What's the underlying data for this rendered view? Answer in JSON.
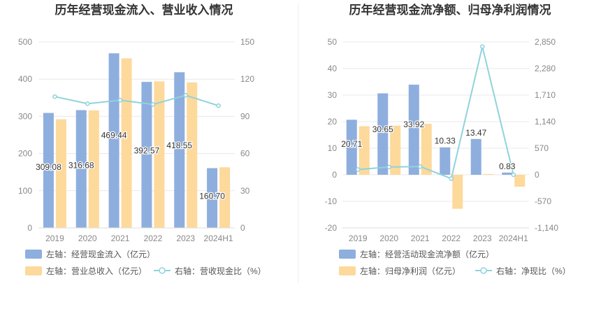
{
  "chart_data": [
    {
      "type": "bar",
      "title": "历年经营现金流入、营业收入情况",
      "categories": [
        "2019",
        "2020",
        "2021",
        "2022",
        "2023",
        "2024H1"
      ],
      "y_left": {
        "ticks": [
          "0",
          "100",
          "200",
          "300",
          "400",
          "500"
        ],
        "ylim": [
          0,
          500
        ]
      },
      "y_right": {
        "ticks": [
          "0",
          "30",
          "60",
          "90",
          "120",
          "150"
        ],
        "ylim": [
          0,
          150
        ]
      },
      "grid": true,
      "legend_position": "bottom-left",
      "series": [
        {
          "name": "左轴：经营现金流入（亿元）",
          "kind": "bar",
          "axis": "left",
          "color": "#8eaede",
          "values": [
            309.08,
            316.68,
            469.44,
            392.57,
            418.55,
            160.7
          ],
          "labels": [
            "309.08",
            "316.68",
            "469.44",
            "392.57",
            "418.55",
            "160.70"
          ]
        },
        {
          "name": "左轴：营业总收入（亿元）",
          "kind": "bar",
          "axis": "left",
          "color": "#fdd99b",
          "values": [
            292,
            316,
            456,
            394,
            391,
            163
          ]
        },
        {
          "name": "右轴：营收现金比（%）",
          "kind": "line",
          "axis": "right",
          "color": "#8fd3dc",
          "values": [
            105.9,
            100.2,
            103.0,
            99.6,
            107.0,
            98.6
          ]
        }
      ]
    },
    {
      "type": "bar",
      "title": "历年经营现金流净额、归母净利润情况",
      "categories": [
        "2019",
        "2020",
        "2021",
        "2022",
        "2023",
        "2024H1"
      ],
      "y_left": {
        "ticks": [
          "-20",
          "-10",
          "0",
          "10",
          "20",
          "30",
          "40",
          "50"
        ],
        "ylim": [
          -20,
          50
        ]
      },
      "y_right": {
        "ticks": [
          "-1,140",
          "-570",
          "0",
          "570",
          "1,140",
          "1,710",
          "2,280",
          "2,850"
        ],
        "ylim": [
          -1140,
          2850
        ]
      },
      "grid": true,
      "legend_position": "bottom-left",
      "series": [
        {
          "name": "左轴：经营活动现金流净额（亿元）",
          "kind": "bar",
          "axis": "left",
          "color": "#8eaede",
          "values": [
            20.71,
            30.65,
            33.92,
            10.33,
            13.47,
            0.83
          ],
          "labels": [
            "20.71",
            "30.65",
            "33.92",
            "10.33",
            "13.47",
            "0.83"
          ]
        },
        {
          "name": "左轴：归母净利润（亿元）",
          "kind": "bar",
          "axis": "left",
          "color": "#fdd99b",
          "values": [
            18.3,
            18.5,
            19.2,
            -12.8,
            0.3,
            -4.5
          ]
        },
        {
          "name": "右轴：净现比（%）",
          "kind": "line",
          "axis": "right",
          "color": "#8fd3dc",
          "values": [
            113,
            166,
            177,
            -81,
            2750,
            0
          ]
        }
      ]
    }
  ]
}
